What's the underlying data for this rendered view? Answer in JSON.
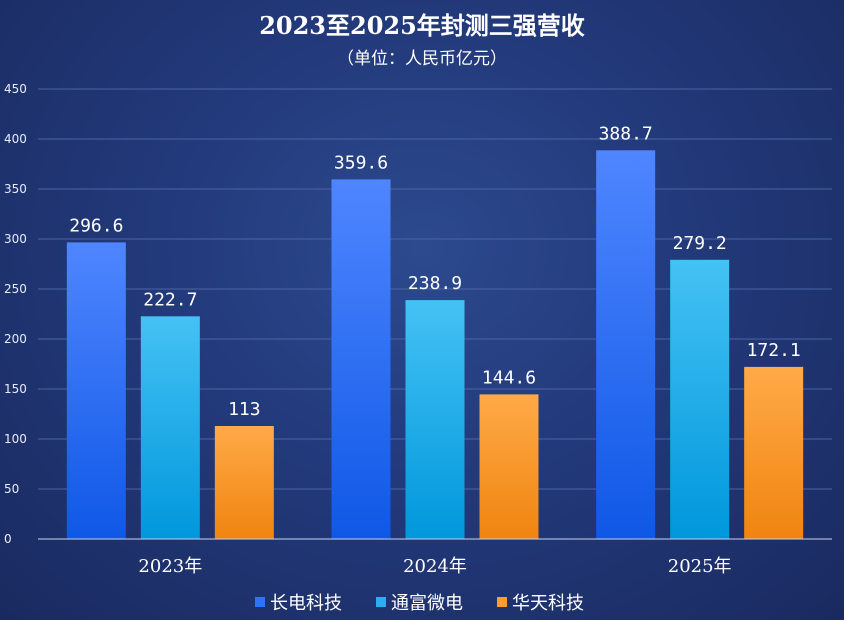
{
  "chart_data": {
    "type": "bar",
    "title": "2023至2025年封测三强营收",
    "subtitle": "（单位：人民币亿元）",
    "categories": [
      "2023年",
      "2024年",
      "2025年"
    ],
    "series": [
      {
        "name": "长电科技",
        "values": [
          296.6,
          359.6,
          388.7
        ],
        "labels": [
          "296.6",
          "359.6",
          "388.7"
        ],
        "color": "#2a74ff"
      },
      {
        "name": "通富微电",
        "values": [
          222.7,
          238.9,
          279.2
        ],
        "labels": [
          "222.7",
          "238.9",
          "279.2"
        ],
        "color": "#2aaef0"
      },
      {
        "name": "华天科技",
        "values": [
          113,
          144.6,
          172.1
        ],
        "labels": [
          "113",
          "144.6",
          "172.1"
        ],
        "color": "#ff9e2c"
      }
    ],
    "ylim": [
      0,
      450
    ],
    "yticks": [
      0,
      50,
      100,
      150,
      200,
      250,
      300,
      350,
      400,
      450
    ],
    "grid": true,
    "legend_position": "bottom"
  }
}
